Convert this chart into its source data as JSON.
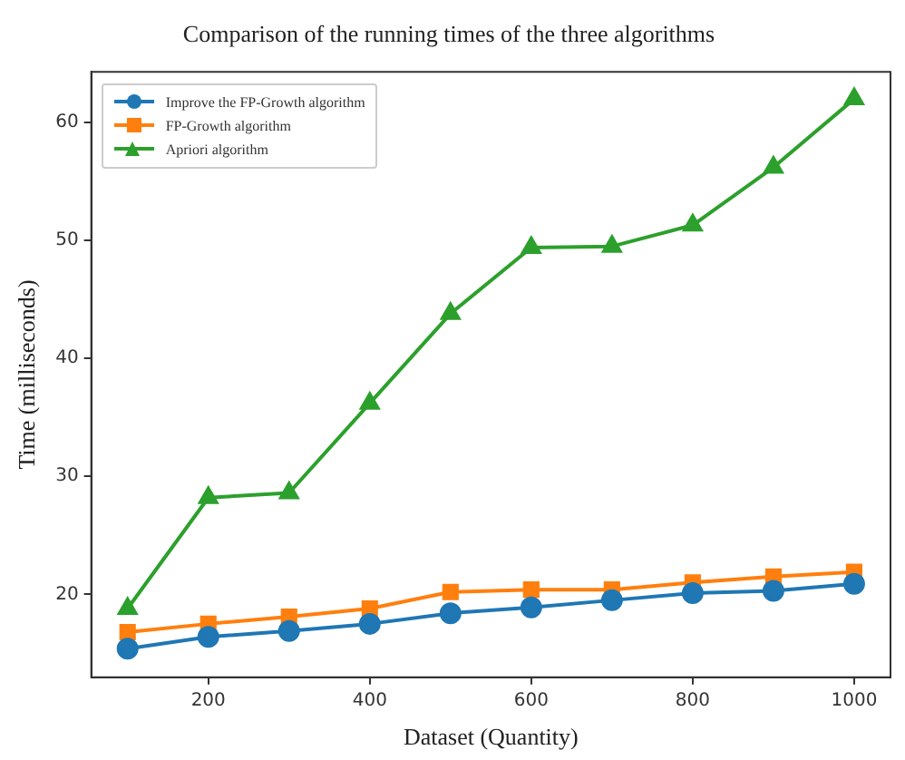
{
  "chart_data": {
    "type": "line",
    "title": "Comparison of the running times of the three algorithms",
    "xlabel": "Dataset (Quantity)",
    "ylabel": "Time (milliseconds)",
    "x": [
      100,
      200,
      300,
      400,
      500,
      600,
      700,
      800,
      900,
      1000
    ],
    "series": [
      {
        "name": "Improve the FP-Growth algorithm",
        "color": "#1f77b4",
        "marker": "circle",
        "values": [
          15.4,
          16.4,
          16.9,
          17.5,
          18.4,
          18.9,
          19.5,
          20.1,
          20.3,
          20.9
        ]
      },
      {
        "name": "FP-Growth algorithm",
        "color": "#ff7f0e",
        "marker": "square",
        "values": [
          16.8,
          17.5,
          18.1,
          18.8,
          20.2,
          20.4,
          20.4,
          21.0,
          21.5,
          21.9
        ]
      },
      {
        "name": "Apriori algorithm",
        "color": "#2ca02c",
        "marker": "triangle",
        "values": [
          18.8,
          28.2,
          28.6,
          36.2,
          43.8,
          49.4,
          49.5,
          51.3,
          56.2,
          62.0
        ]
      }
    ],
    "xlim": [
      55,
      1045
    ],
    "xticks": [
      200,
      400,
      600,
      800,
      1000
    ],
    "ylim": [
      12.97,
      64.3
    ],
    "yticks": [
      20,
      30,
      40,
      50,
      60
    ],
    "grid": false,
    "legend": "top left",
    "line_style": "solid"
  }
}
